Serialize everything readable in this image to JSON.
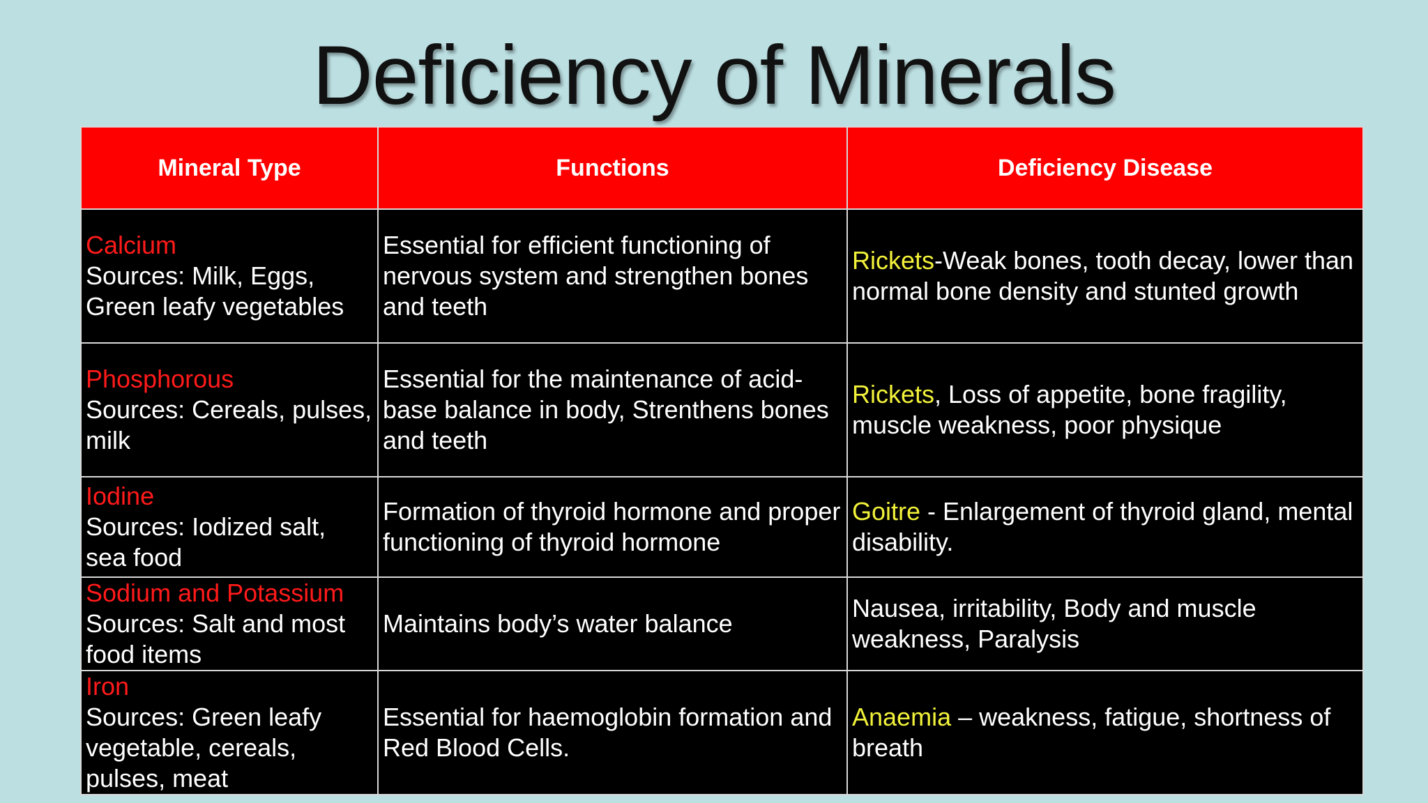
{
  "title": "Deficiency of Minerals",
  "colors": {
    "background": "#bcdfe2",
    "header": "#ff0000",
    "mineral_name": "#ff1a1a",
    "disease_name": "#f2f23a",
    "cell_bg": "#000000"
  },
  "headers": [
    "Mineral Type",
    "Functions",
    "Deficiency Disease"
  ],
  "rows": [
    {
      "mineral": "Calcium",
      "sources": "Sources: Milk, Eggs, Green leafy vegetables",
      "function": "Essential for efficient functioning of nervous system and strengthen bones and teeth",
      "disease": "Rickets",
      "disease_desc": "-Weak bones, tooth decay, lower than normal bone density and stunted growth"
    },
    {
      "mineral": "Phosphorous",
      "sources": "Sources: Cereals, pulses, milk",
      "function": "Essential for the maintenance of acid-base balance in body, Strenthens bones and teeth",
      "disease": "Rickets",
      "disease_desc": ", Loss of appetite, bone fragility, muscle weakness, poor physique"
    },
    {
      "mineral": "Iodine",
      "sources": "Sources: Iodized salt, sea food",
      "function": "Formation of thyroid hormone and proper functioning of thyroid hormone",
      "disease": "Goitre",
      "disease_desc": " - Enlargement of thyroid gland, mental disability."
    },
    {
      "mineral": "Sodium and Potassium",
      "sources": "Sources: Salt and most food items",
      "function": "Maintains body’s water balance",
      "disease": "",
      "disease_desc": "Nausea, irritability, Body and muscle weakness, Paralysis"
    },
    {
      "mineral": "Iron",
      "sources": "Sources: Green leafy vegetable, cereals, pulses, meat",
      "function": "Essential for haemoglobin formation and Red Blood Cells.",
      "disease": "Anaemia",
      "disease_desc": " – weakness, fatigue, shortness of breath"
    }
  ]
}
